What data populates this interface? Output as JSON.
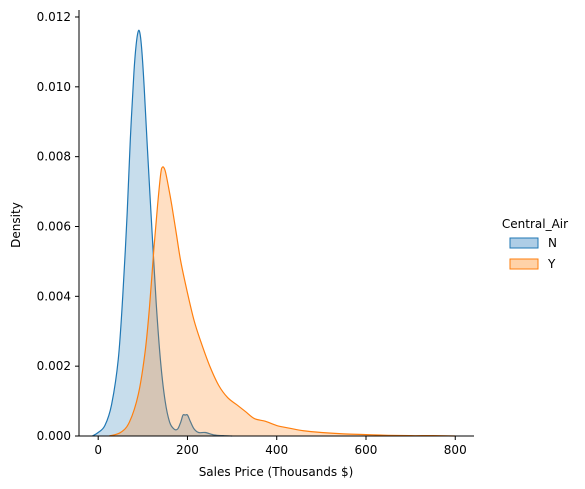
{
  "chart_data": {
    "type": "area",
    "title": "",
    "xlabel": "Sales Price (Thousands $)",
    "ylabel": "Density",
    "xlim": [
      -43,
      842
    ],
    "ylim": [
      0,
      0.0122
    ],
    "xticks": [
      0,
      200,
      400,
      600,
      800
    ],
    "yticks": [
      0.0,
      0.002,
      0.004,
      0.006,
      0.008,
      0.01,
      0.012
    ],
    "xtick_labels": [
      "0",
      "200",
      "400",
      "600",
      "800"
    ],
    "ytick_labels": [
      "0.000",
      "0.002",
      "0.004",
      "0.006",
      "0.008",
      "0.010",
      "0.012"
    ],
    "grid": false,
    "legend": {
      "title": "Central_Air",
      "placement": "right",
      "entries": [
        "N",
        "Y"
      ]
    },
    "series": [
      {
        "name": "N",
        "color": "#1f77b4",
        "fill": "#aecde6",
        "x": [
          -13,
          0,
          15,
          30,
          45,
          55,
          65,
          72,
          80,
          85,
          90,
          94,
          98,
          103,
          110,
          120,
          130,
          140,
          150,
          160,
          170,
          178,
          185,
          190,
          195,
          200,
          207,
          215,
          225,
          240,
          260,
          280,
          300
        ],
        "y": [
          0.0,
          0.0001,
          0.0003,
          0.0009,
          0.0022,
          0.004,
          0.0064,
          0.0085,
          0.0104,
          0.0112,
          0.0116,
          0.0115,
          0.011,
          0.01,
          0.0083,
          0.006,
          0.0038,
          0.0021,
          0.001,
          0.0004,
          0.0002,
          0.0002,
          0.0004,
          0.0006,
          0.0006,
          0.0006,
          0.0004,
          0.0002,
          0.0001,
          0.0001,
          3e-05,
          1e-05,
          0.0
        ]
      },
      {
        "name": "Y",
        "color": "#ff7f0e",
        "fill": "#ffd2a8",
        "x": [
          25,
          50,
          70,
          90,
          105,
          115,
          125,
          133,
          140,
          144,
          150,
          158,
          165,
          175,
          185,
          200,
          215,
          230,
          250,
          270,
          290,
          310,
          330,
          350,
          375,
          400,
          430,
          460,
          500,
          550,
          600,
          650,
          700,
          750,
          800
        ],
        "y": [
          0.0,
          0.0001,
          0.0004,
          0.0012,
          0.0024,
          0.0037,
          0.0054,
          0.0066,
          0.0075,
          0.0077,
          0.0076,
          0.0071,
          0.0066,
          0.0058,
          0.005,
          0.0041,
          0.0033,
          0.0027,
          0.002,
          0.00145,
          0.0011,
          0.0009,
          0.0007,
          0.0005,
          0.00042,
          0.0003,
          0.00022,
          0.00015,
          0.0001,
          6e-05,
          4e-05,
          2e-05,
          1e-05,
          1e-05,
          0.0
        ]
      }
    ]
  }
}
